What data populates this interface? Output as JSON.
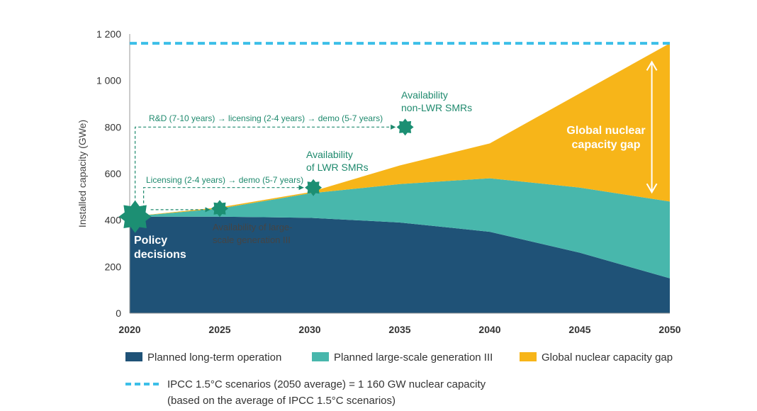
{
  "chart_data": {
    "type": "area",
    "ylabel": "Installed capacity (GWe)",
    "x": [
      2020,
      2025,
      2030,
      2035,
      2040,
      2045,
      2050
    ],
    "ylim": [
      0,
      1200
    ],
    "yticks": [
      0,
      200,
      400,
      600,
      800,
      1000,
      1200
    ],
    "ytick_labels": [
      "0",
      "200",
      "400",
      "600",
      "800",
      "1 000",
      "1 200"
    ],
    "xtick_labels": [
      "2020",
      "2025",
      "2030",
      "2035",
      "2040",
      "2045",
      "2050"
    ],
    "series": [
      {
        "name": "Planned long-term operation",
        "color": "#1f5277",
        "values": [
          415,
          415,
          410,
          390,
          350,
          260,
          150
        ]
      },
      {
        "name": "Planned large-scale generation III",
        "color": "#48b7ac",
        "values": [
          0,
          35,
          105,
          165,
          230,
          280,
          330
        ]
      },
      {
        "name": "Global nuclear capacity gap",
        "color": "#f7b519",
        "values": [
          0,
          5,
          5,
          80,
          150,
          405,
          680
        ]
      }
    ],
    "reference_line": {
      "value": 1160,
      "color": "#3cbfe8",
      "label": "IPCC 1.5°C scenarios (2050 average) = 1 160 GW nuclear capacity",
      "sublabel": "(based on the average of IPCC 1.5°C scenarios)"
    },
    "annotations": {
      "policy": [
        "Policy",
        "decisions"
      ],
      "gen3": [
        "Availability of large-",
        "scale generation III"
      ],
      "lwr": [
        "Availability",
        "of LWR SMRs"
      ],
      "nonlwr": [
        "Availability",
        "non-LWR SMRs"
      ],
      "lwr_path": "Licensing (2-4 years) → demo (5-7 years)",
      "nonlwr_path": "R&D (7-10 years) → licensing (2-4 years) → demo (5-7 years)",
      "gap": [
        "Global nuclear",
        "capacity gap"
      ]
    },
    "milestones": [
      {
        "x": 2020.3,
        "y": 415,
        "size": "large"
      },
      {
        "x": 2025,
        "y": 450,
        "size": "small"
      },
      {
        "x": 2030.2,
        "y": 540,
        "size": "small"
      },
      {
        "x": 2035.3,
        "y": 800,
        "size": "small"
      }
    ],
    "gap_arrow": {
      "x": 2049,
      "y_from": 520,
      "y_to": 1080
    },
    "legend_position": "bottom",
    "grid": false
  }
}
